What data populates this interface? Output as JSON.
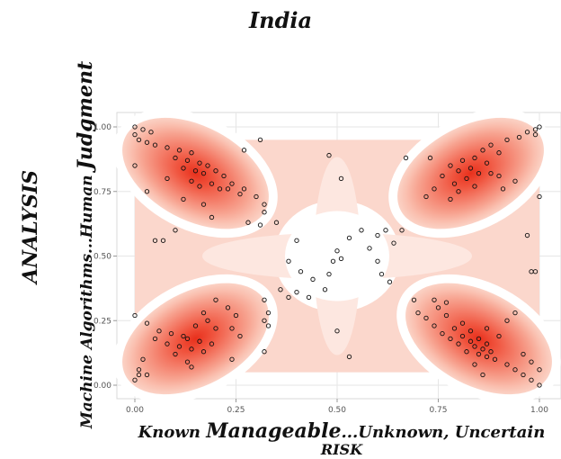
{
  "chart_data": {
    "type": "scatter",
    "title": "India",
    "ylabel_outer": "ANALYSIS",
    "ylabel_inner_prefix": "Machine Algorithms...Human ",
    "ylabel_inner_suffix": "Judgment",
    "xlabel_prefix": "Known ",
    "xlabel_middle": "Manageable",
    "xlabel_suffix": "...Unknown, Uncertain",
    "xlabel_line2": "RISK",
    "xlim": [
      0,
      1
    ],
    "ylim": [
      0,
      1
    ],
    "xticks": [
      "0.00",
      "0.25",
      "0.50",
      "0.75",
      "1.00"
    ],
    "yticks": [
      "0.00",
      "0.25",
      "0.50",
      "0.75",
      "1.00"
    ],
    "grid": true,
    "density_fill": "red gradient (2D density)",
    "density_centers": [
      {
        "x": 0.15,
        "y": 0.82
      },
      {
        "x": 0.83,
        "y": 0.82
      },
      {
        "x": 0.15,
        "y": 0.18
      },
      {
        "x": 0.85,
        "y": 0.18
      }
    ],
    "points": [
      {
        "x": 0.0,
        "y": 1.0
      },
      {
        "x": 0.02,
        "y": 0.99
      },
      {
        "x": 0.04,
        "y": 0.98
      },
      {
        "x": 0.0,
        "y": 0.97
      },
      {
        "x": 0.01,
        "y": 0.95
      },
      {
        "x": 0.03,
        "y": 0.94
      },
      {
        "x": 0.05,
        "y": 0.93
      },
      {
        "x": 0.08,
        "y": 0.92
      },
      {
        "x": 0.11,
        "y": 0.91
      },
      {
        "x": 0.14,
        "y": 0.9
      },
      {
        "x": 0.1,
        "y": 0.88
      },
      {
        "x": 0.13,
        "y": 0.87
      },
      {
        "x": 0.16,
        "y": 0.86
      },
      {
        "x": 0.18,
        "y": 0.85
      },
      {
        "x": 0.12,
        "y": 0.84
      },
      {
        "x": 0.15,
        "y": 0.83
      },
      {
        "x": 0.2,
        "y": 0.83
      },
      {
        "x": 0.17,
        "y": 0.82
      },
      {
        "x": 0.22,
        "y": 0.81
      },
      {
        "x": 0.08,
        "y": 0.8
      },
      {
        "x": 0.14,
        "y": 0.79
      },
      {
        "x": 0.19,
        "y": 0.78
      },
      {
        "x": 0.24,
        "y": 0.78
      },
      {
        "x": 0.16,
        "y": 0.77
      },
      {
        "x": 0.21,
        "y": 0.76
      },
      {
        "x": 0.23,
        "y": 0.76
      },
      {
        "x": 0.27,
        "y": 0.76
      },
      {
        "x": 0.03,
        "y": 0.75
      },
      {
        "x": 0.26,
        "y": 0.74
      },
      {
        "x": 0.3,
        "y": 0.73
      },
      {
        "x": 0.12,
        "y": 0.72
      },
      {
        "x": 0.17,
        "y": 0.7
      },
      {
        "x": 0.0,
        "y": 0.85
      },
      {
        "x": 0.32,
        "y": 0.67
      },
      {
        "x": 0.19,
        "y": 0.65
      },
      {
        "x": 0.28,
        "y": 0.63
      },
      {
        "x": 0.1,
        "y": 0.6
      },
      {
        "x": 0.05,
        "y": 0.56
      },
      {
        "x": 0.07,
        "y": 0.56
      },
      {
        "x": 0.31,
        "y": 0.62
      },
      {
        "x": 0.32,
        "y": 0.7
      },
      {
        "x": 0.35,
        "y": 0.63
      },
      {
        "x": 0.31,
        "y": 0.95
      },
      {
        "x": 0.48,
        "y": 0.89
      },
      {
        "x": 0.51,
        "y": 0.8
      },
      {
        "x": 0.27,
        "y": 0.91
      },
      {
        "x": 1.0,
        "y": 1.0
      },
      {
        "x": 0.99,
        "y": 0.99
      },
      {
        "x": 0.97,
        "y": 0.98
      },
      {
        "x": 0.95,
        "y": 0.96
      },
      {
        "x": 0.92,
        "y": 0.95
      },
      {
        "x": 0.88,
        "y": 0.93
      },
      {
        "x": 0.86,
        "y": 0.91
      },
      {
        "x": 0.9,
        "y": 0.9
      },
      {
        "x": 0.84,
        "y": 0.88
      },
      {
        "x": 0.81,
        "y": 0.87
      },
      {
        "x": 0.87,
        "y": 0.86
      },
      {
        "x": 0.78,
        "y": 0.85
      },
      {
        "x": 0.83,
        "y": 0.84
      },
      {
        "x": 0.8,
        "y": 0.83
      },
      {
        "x": 0.85,
        "y": 0.82
      },
      {
        "x": 0.88,
        "y": 0.82
      },
      {
        "x": 0.9,
        "y": 0.81
      },
      {
        "x": 0.76,
        "y": 0.81
      },
      {
        "x": 0.82,
        "y": 0.8
      },
      {
        "x": 0.94,
        "y": 0.79
      },
      {
        "x": 0.79,
        "y": 0.78
      },
      {
        "x": 0.84,
        "y": 0.77
      },
      {
        "x": 0.91,
        "y": 0.76
      },
      {
        "x": 0.74,
        "y": 0.76
      },
      {
        "x": 0.8,
        "y": 0.75
      },
      {
        "x": 1.0,
        "y": 0.73
      },
      {
        "x": 0.72,
        "y": 0.73
      },
      {
        "x": 0.78,
        "y": 0.72
      },
      {
        "x": 0.99,
        "y": 0.97
      },
      {
        "x": 0.97,
        "y": 0.58
      },
      {
        "x": 0.98,
        "y": 0.44
      },
      {
        "x": 0.99,
        "y": 0.44
      },
      {
        "x": 0.73,
        "y": 0.88
      },
      {
        "x": 0.67,
        "y": 0.88
      },
      {
        "x": 0.0,
        "y": 0.27
      },
      {
        "x": 0.03,
        "y": 0.24
      },
      {
        "x": 0.06,
        "y": 0.21
      },
      {
        "x": 0.09,
        "y": 0.2
      },
      {
        "x": 0.12,
        "y": 0.19
      },
      {
        "x": 0.15,
        "y": 0.23
      },
      {
        "x": 0.18,
        "y": 0.25
      },
      {
        "x": 0.2,
        "y": 0.22
      },
      {
        "x": 0.13,
        "y": 0.18
      },
      {
        "x": 0.16,
        "y": 0.17
      },
      {
        "x": 0.19,
        "y": 0.16
      },
      {
        "x": 0.08,
        "y": 0.16
      },
      {
        "x": 0.11,
        "y": 0.15
      },
      {
        "x": 0.14,
        "y": 0.14
      },
      {
        "x": 0.17,
        "y": 0.13
      },
      {
        "x": 0.1,
        "y": 0.12
      },
      {
        "x": 0.05,
        "y": 0.18
      },
      {
        "x": 0.02,
        "y": 0.1
      },
      {
        "x": 0.01,
        "y": 0.06
      },
      {
        "x": 0.01,
        "y": 0.04
      },
      {
        "x": 0.0,
        "y": 0.02
      },
      {
        "x": 0.13,
        "y": 0.09
      },
      {
        "x": 0.14,
        "y": 0.07
      },
      {
        "x": 0.24,
        "y": 0.22
      },
      {
        "x": 0.26,
        "y": 0.19
      },
      {
        "x": 0.23,
        "y": 0.3
      },
      {
        "x": 0.17,
        "y": 0.28
      },
      {
        "x": 0.2,
        "y": 0.33
      },
      {
        "x": 0.25,
        "y": 0.27
      },
      {
        "x": 0.03,
        "y": 0.04
      },
      {
        "x": 0.33,
        "y": 0.28
      },
      {
        "x": 0.32,
        "y": 0.33
      },
      {
        "x": 0.32,
        "y": 0.25
      },
      {
        "x": 0.33,
        "y": 0.23
      },
      {
        "x": 0.32,
        "y": 0.13
      },
      {
        "x": 0.24,
        "y": 0.1
      },
      {
        "x": 1.0,
        "y": 0.0
      },
      {
        "x": 0.98,
        "y": 0.02
      },
      {
        "x": 0.96,
        "y": 0.04
      },
      {
        "x": 0.94,
        "y": 0.06
      },
      {
        "x": 0.92,
        "y": 0.08
      },
      {
        "x": 0.89,
        "y": 0.1
      },
      {
        "x": 0.87,
        "y": 0.11
      },
      {
        "x": 0.85,
        "y": 0.12
      },
      {
        "x": 0.88,
        "y": 0.13
      },
      {
        "x": 0.82,
        "y": 0.13
      },
      {
        "x": 0.86,
        "y": 0.14
      },
      {
        "x": 0.84,
        "y": 0.15
      },
      {
        "x": 0.8,
        "y": 0.16
      },
      {
        "x": 0.87,
        "y": 0.16
      },
      {
        "x": 0.83,
        "y": 0.17
      },
      {
        "x": 0.78,
        "y": 0.18
      },
      {
        "x": 0.85,
        "y": 0.18
      },
      {
        "x": 0.81,
        "y": 0.19
      },
      {
        "x": 0.9,
        "y": 0.19
      },
      {
        "x": 0.76,
        "y": 0.2
      },
      {
        "x": 0.83,
        "y": 0.21
      },
      {
        "x": 0.79,
        "y": 0.22
      },
      {
        "x": 0.87,
        "y": 0.22
      },
      {
        "x": 0.74,
        "y": 0.23
      },
      {
        "x": 0.81,
        "y": 0.24
      },
      {
        "x": 0.92,
        "y": 0.25
      },
      {
        "x": 0.72,
        "y": 0.26
      },
      {
        "x": 0.77,
        "y": 0.27
      },
      {
        "x": 0.7,
        "y": 0.28
      },
      {
        "x": 0.75,
        "y": 0.3
      },
      {
        "x": 0.69,
        "y": 0.33
      },
      {
        "x": 0.74,
        "y": 0.33
      },
      {
        "x": 0.77,
        "y": 0.32
      },
      {
        "x": 0.94,
        "y": 0.28
      },
      {
        "x": 0.96,
        "y": 0.12
      },
      {
        "x": 0.98,
        "y": 0.09
      },
      {
        "x": 1.0,
        "y": 0.06
      },
      {
        "x": 0.86,
        "y": 0.04
      },
      {
        "x": 0.84,
        "y": 0.08
      },
      {
        "x": 0.63,
        "y": 0.4
      },
      {
        "x": 0.61,
        "y": 0.43
      },
      {
        "x": 0.6,
        "y": 0.48
      },
      {
        "x": 0.58,
        "y": 0.53
      },
      {
        "x": 0.6,
        "y": 0.58
      },
      {
        "x": 0.62,
        "y": 0.6
      },
      {
        "x": 0.56,
        "y": 0.6
      },
      {
        "x": 0.53,
        "y": 0.57
      },
      {
        "x": 0.5,
        "y": 0.52
      },
      {
        "x": 0.49,
        "y": 0.48
      },
      {
        "x": 0.51,
        "y": 0.49
      },
      {
        "x": 0.44,
        "y": 0.41
      },
      {
        "x": 0.41,
        "y": 0.44
      },
      {
        "x": 0.4,
        "y": 0.36
      },
      {
        "x": 0.38,
        "y": 0.34
      },
      {
        "x": 0.36,
        "y": 0.37
      },
      {
        "x": 0.38,
        "y": 0.48
      },
      {
        "x": 0.4,
        "y": 0.56
      },
      {
        "x": 0.64,
        "y": 0.55
      },
      {
        "x": 0.66,
        "y": 0.6
      },
      {
        "x": 0.5,
        "y": 0.21
      },
      {
        "x": 0.53,
        "y": 0.11
      },
      {
        "x": 0.48,
        "y": 0.43
      },
      {
        "x": 0.47,
        "y": 0.37
      },
      {
        "x": 0.43,
        "y": 0.34
      }
    ]
  }
}
